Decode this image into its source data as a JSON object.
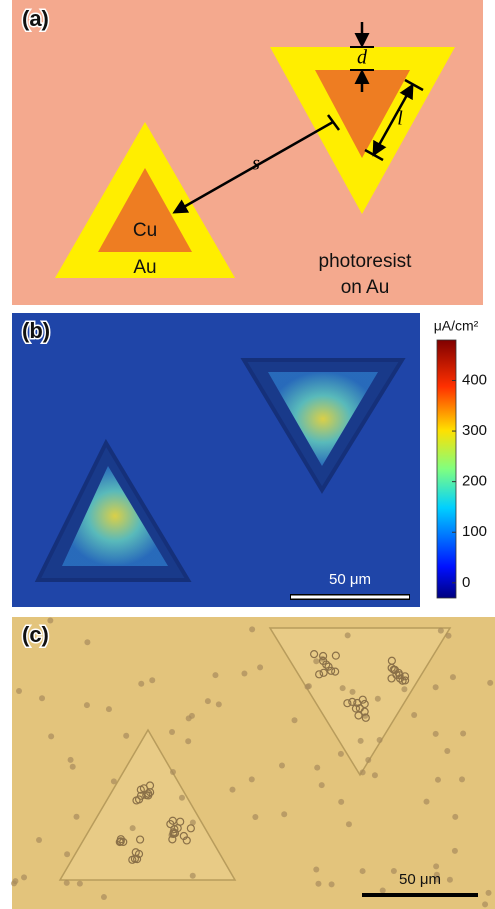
{
  "panel_a": {
    "label": "(a)",
    "dimension_labels": [
      "d",
      "l",
      "s"
    ],
    "metal_labels": [
      "Cu",
      "Au"
    ],
    "photoresist_label": [
      "photoresist",
      "on Au"
    ]
  },
  "panel_b": {
    "label": "(b)",
    "colorbar": {
      "unit": "μA/cm²",
      "lim": [
        -30,
        480
      ],
      "ticks": [
        0,
        100,
        200,
        300,
        400
      ]
    },
    "scale_bar": "50 μm"
  },
  "panel_c": {
    "label": "(c)",
    "scale_bar": "50 μm"
  }
}
